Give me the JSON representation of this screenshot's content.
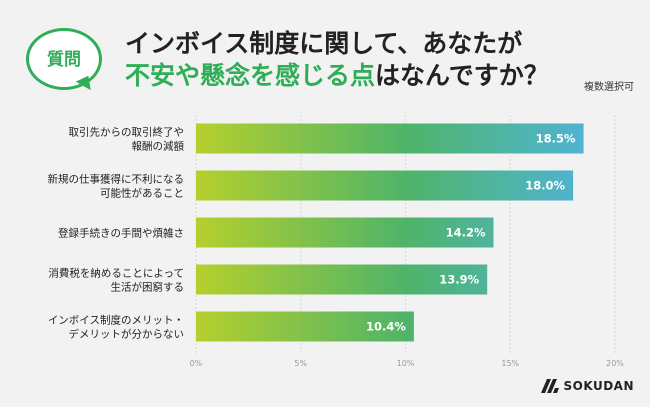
{
  "badge": {
    "label": "質問"
  },
  "title": {
    "line1": "インボイス制度に関して、あなたが",
    "line2_highlight": "不安や懸念を感じる点",
    "line2_rest": "はなんですか？"
  },
  "note": "複数選択可",
  "logo": {
    "text": "SOKUDAN",
    "icon": "sokudan-logo-icon"
  },
  "colors": {
    "accent": "#2fae57",
    "bar_start": "#b5cf2d",
    "bar_mid": "#4fb468",
    "bar_end": "#4fb3e6"
  },
  "chart_data": {
    "type": "bar",
    "orientation": "horizontal",
    "categories": [
      [
        "取引先からの取引終了や",
        "報酬の減額"
      ],
      [
        "新規の仕事獲得に不利になる",
        "可能性があること"
      ],
      [
        "登録手続きの手間や煩雑さ"
      ],
      [
        "消費税を納めることによって",
        "生活が困窮する"
      ],
      [
        "インボイス制度のメリット・",
        "デメリットが分からない"
      ]
    ],
    "values": [
      18.5,
      18.0,
      14.2,
      13.9,
      10.4
    ],
    "value_labels": [
      "18.5%",
      "18.0%",
      "14.2%",
      "13.9%",
      "10.4%"
    ],
    "xlim": [
      0,
      20
    ],
    "xticks": [
      0,
      5,
      10,
      15,
      20
    ],
    "xtick_labels": [
      "0%",
      "5%",
      "10%",
      "15%",
      "20%"
    ],
    "grid": true
  }
}
